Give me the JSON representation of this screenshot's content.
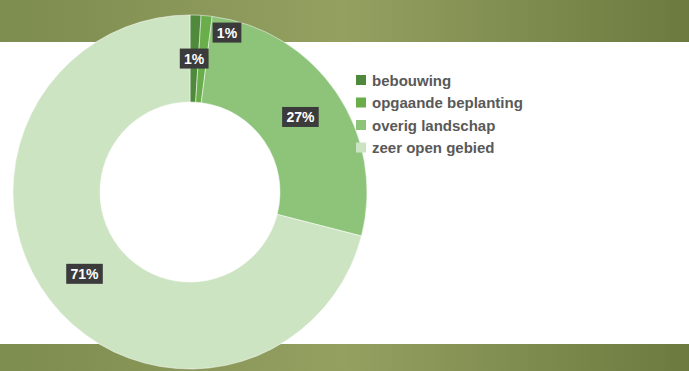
{
  "chart_data": {
    "type": "pie",
    "categories": [
      "bebouwing",
      "opgaande beplanting",
      "overig landschap",
      "zeer open gebied"
    ],
    "values": [
      1,
      1,
      27,
      71
    ],
    "value_labels": [
      "1%",
      "1%",
      "27%",
      "71%"
    ],
    "colors": [
      "#4f8a3c",
      "#6aae4c",
      "#8dc47a",
      "#cde4c3"
    ],
    "data_labels": true,
    "legend": "right"
  }
}
